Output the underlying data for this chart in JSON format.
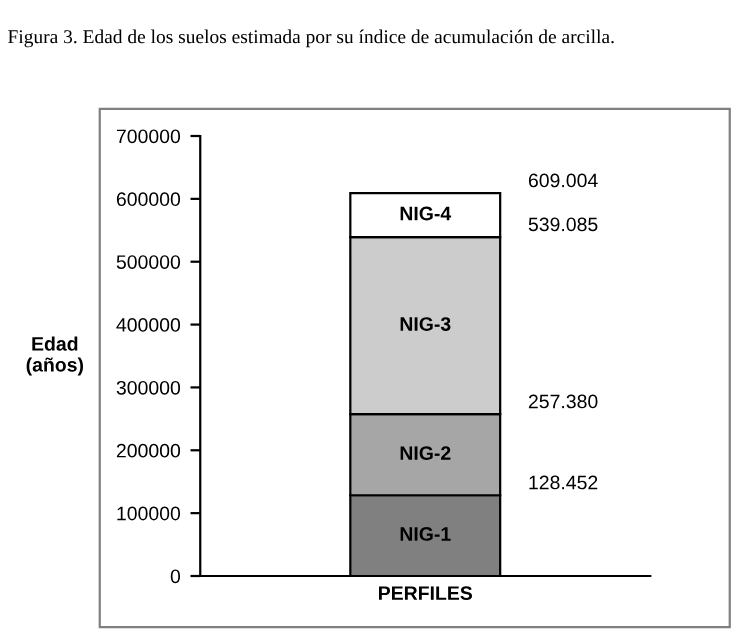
{
  "chart_data": {
    "type": "bar",
    "stacked": true,
    "title": "Figura 3. Edad de los suelos estimada por su índice de acumulación de arcilla.",
    "ylabel": "Edad\n(años)",
    "categories": [
      "PERFILES"
    ],
    "series": [
      {
        "name": "NIG-1",
        "color": "#808080",
        "values": [
          128452
        ]
      },
      {
        "name": "NIG-2",
        "color": "#a6a6a6",
        "values": [
          128928
        ]
      },
      {
        "name": "NIG-3",
        "color": "#cccccc",
        "values": [
          281705
        ]
      },
      {
        "name": "NIG-4",
        "color": "#ffffff",
        "values": [
          69919
        ]
      }
    ],
    "ylim": [
      0,
      700000
    ],
    "yticks": [
      0,
      100000,
      200000,
      300000,
      400000,
      500000,
      600000,
      700000
    ],
    "grid": false,
    "legend": false,
    "annotations": [
      "128.452",
      "257.380",
      "539.085",
      "609.004"
    ]
  }
}
